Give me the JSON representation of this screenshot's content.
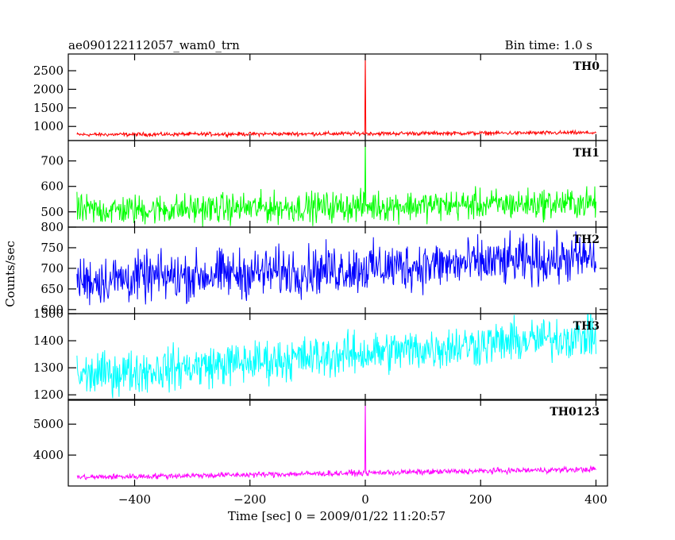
{
  "header": {
    "title": "ae090122112057_wam0_trn",
    "bin_time": "Bin time: 1.0 s"
  },
  "chart_data": {
    "type": "line",
    "title": "ae090122112057_wam0_trn",
    "xlabel": "Time [sec] 0 = 2009/01/22 11:20:57",
    "ylabel": "Counts/sec",
    "xlim": [
      -515,
      420
    ],
    "x_data_range": [
      -500,
      400
    ],
    "bin_time_s": 1.0,
    "x_ticks": [
      -400,
      -200,
      0,
      200,
      400
    ],
    "x_tick_labels": [
      "−400",
      "−200",
      "0",
      "200",
      "400"
    ],
    "grid": false,
    "panels": [
      {
        "name": "TH0",
        "color": "#ff0000",
        "ylim": [
          620,
          2950
        ],
        "y_ticks": [
          1000,
          1500,
          2000,
          2500
        ],
        "y_tick_labels": [
          "1000",
          "1500",
          "2000",
          "2500"
        ],
        "baseline_start": 780,
        "baseline_end": 830,
        "noise": 40,
        "burst": {
          "x": 0,
          "peak": 3000
        }
      },
      {
        "name": "TH1",
        "color": "#00ff00",
        "ylim": [
          440,
          780
        ],
        "y_ticks": [
          500,
          600,
          700
        ],
        "y_tick_labels": [
          "500",
          "600",
          "700"
        ],
        "baseline_start": 505,
        "baseline_end": 535,
        "noise": 45,
        "burst": {
          "x": 0,
          "peak": 790
        }
      },
      {
        "name": "TH2",
        "color": "#0000ff",
        "ylim": [
          590,
          800
        ],
        "y_ticks": [
          600,
          650,
          700,
          750,
          800
        ],
        "y_tick_labels": [
          "600",
          "650",
          "700",
          "750",
          "800"
        ],
        "baseline_start": 670,
        "baseline_end": 725,
        "noise": 45,
        "burst": null
      },
      {
        "name": "TH3",
        "color": "#00ffff",
        "ylim": [
          1180,
          1500
        ],
        "y_ticks": [
          1200,
          1300,
          1400,
          1500
        ],
        "y_tick_labels": [
          "1200",
          "1300",
          "1400",
          "1500"
        ],
        "baseline_start": 1270,
        "baseline_end": 1420,
        "noise": 60,
        "burst": null
      },
      {
        "name": "TH0123",
        "color": "#ff00ff",
        "ylim": [
          3000,
          5800
        ],
        "y_ticks": [
          4000,
          5000
        ],
        "y_tick_labels": [
          "4000",
          "5000"
        ],
        "baseline_start": 3280,
        "baseline_end": 3540,
        "noise": 70,
        "burst": {
          "x": 0,
          "peak": 5800
        }
      }
    ]
  }
}
